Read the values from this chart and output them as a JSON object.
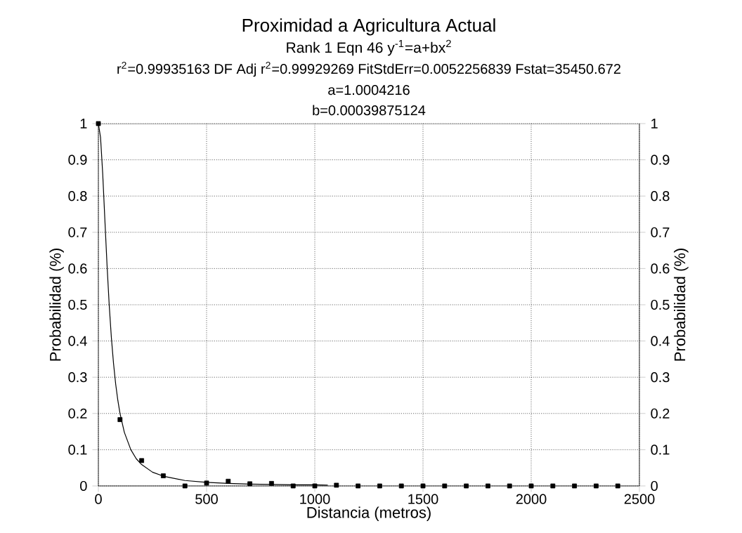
{
  "chart_data": {
    "type": "scatter",
    "title": "Proximidad a Agricultura Actual",
    "subtitle": "Rank 1  Eqn 46  y$^{-1}$=a+bx$^{2}$",
    "annotations": [
      "r$^{2}$=0.99935163  DF Adj r$^{2}$=0.99929269  FitStdErr=0.0052256839  Fstat=35450.672",
      "a=1.0004216",
      "b=0.00039875124"
    ],
    "xlabel": "Distancia (metros)",
    "ylabel": "Probabilidad (%)",
    "y2label": "Probabilidad (%)",
    "xlim": [
      0,
      2500
    ],
    "xticks": [
      0,
      500,
      1000,
      1500,
      2000,
      2500
    ],
    "ylim": [
      0,
      1
    ],
    "yticks": [
      0,
      0.1,
      0.2,
      0.3,
      0.4,
      0.5,
      0.6,
      0.7,
      0.8,
      0.9,
      1
    ],
    "y2lim": [
      0,
      1
    ],
    "y2ticks": [
      0,
      0.1,
      0.2,
      0.3,
      0.4,
      0.5,
      0.6,
      0.7,
      0.8,
      0.9,
      1
    ],
    "grid": true,
    "series": [
      {
        "type": "scatter",
        "marker": "square",
        "color": "#000000",
        "x": [
          0,
          100,
          200,
          300,
          400,
          500,
          600,
          700,
          800,
          900,
          1000,
          1100,
          1200,
          1300,
          1400,
          1500,
          1600,
          1700,
          1800,
          1900,
          2000,
          2100,
          2200,
          2300,
          2400
        ],
        "values": [
          1,
          0.183,
          0.07,
          0.028,
          0,
          0.008,
          0.013,
          0.006,
          0.007,
          0,
          0,
          0.002,
          0,
          0,
          0,
          0,
          0,
          0,
          0,
          0,
          0,
          0,
          0,
          0,
          0
        ]
      },
      {
        "type": "line",
        "marker": "none",
        "line_style": "solid",
        "color": "#000000",
        "x": [
          0,
          10,
          20,
          30,
          40,
          50,
          60,
          70,
          80,
          90,
          100,
          120,
          150,
          175,
          200,
          250,
          300,
          400,
          500,
          600,
          700,
          800,
          900,
          1000,
          1060
        ],
        "values": [
          1,
          0.962,
          0.862,
          0.735,
          0.61,
          0.5,
          0.41,
          0.338,
          0.281,
          0.236,
          0.2,
          0.148,
          0.1,
          0.075,
          0.059,
          0.038,
          0.027,
          0.015,
          0.01,
          0.007,
          0.005,
          0.004,
          0.003,
          0.003,
          0.002
        ]
      }
    ]
  }
}
